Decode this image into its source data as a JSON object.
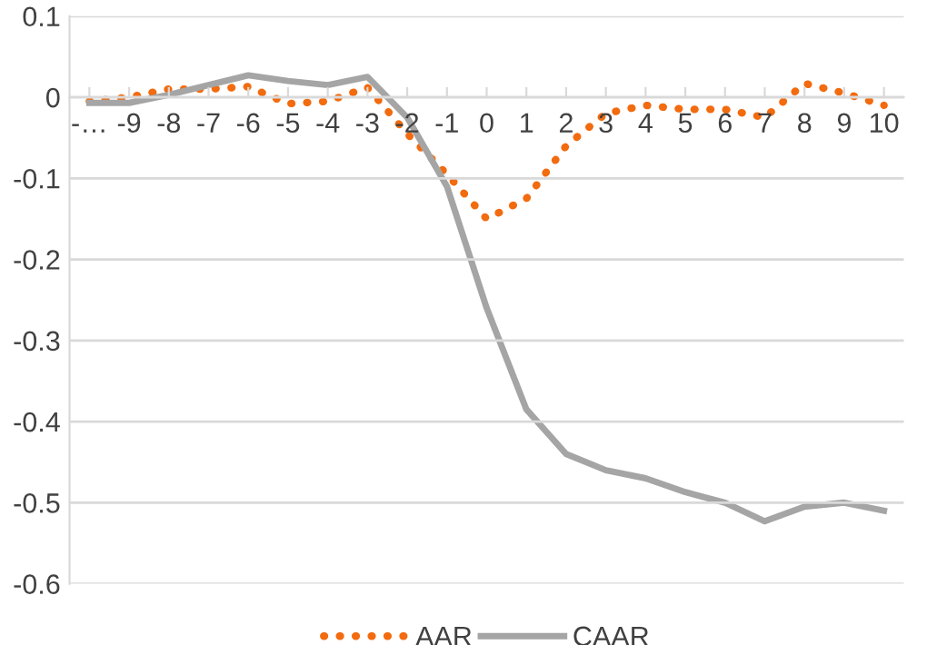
{
  "chart_data": {
    "type": "line",
    "categories": [
      "-…",
      "-9",
      "-8",
      "-7",
      "-6",
      "-5",
      "-4",
      "-3",
      "-2",
      "-1",
      "0",
      "1",
      "2",
      "3",
      "4",
      "5",
      "6",
      "7",
      "8",
      "9",
      "10"
    ],
    "series": [
      {
        "name": "AAR",
        "color": "#f26b0f",
        "line_style": "dotted",
        "values": [
          -0.005,
          0.0,
          0.01,
          0.01,
          0.013,
          -0.008,
          -0.005,
          0.012,
          -0.045,
          -0.095,
          -0.15,
          -0.125,
          -0.06,
          -0.02,
          -0.01,
          -0.015,
          -0.015,
          -0.025,
          0.017,
          0.005,
          -0.01
        ]
      },
      {
        "name": "CAAR",
        "color": "#a5a5a5",
        "line_style": "solid",
        "values": [
          -0.007,
          -0.007,
          0.003,
          0.015,
          0.027,
          0.02,
          0.015,
          0.025,
          -0.025,
          -0.11,
          -0.26,
          -0.385,
          -0.44,
          -0.46,
          -0.47,
          -0.487,
          -0.5,
          -0.523,
          -0.505,
          -0.5,
          -0.51
        ]
      }
    ],
    "ylim": [
      -0.6,
      0.1
    ],
    "yticks": [
      -0.6,
      -0.5,
      -0.4,
      -0.3,
      -0.2,
      -0.1,
      0,
      0.1
    ],
    "grid": "y",
    "legend": "bottom",
    "marker": "none"
  }
}
